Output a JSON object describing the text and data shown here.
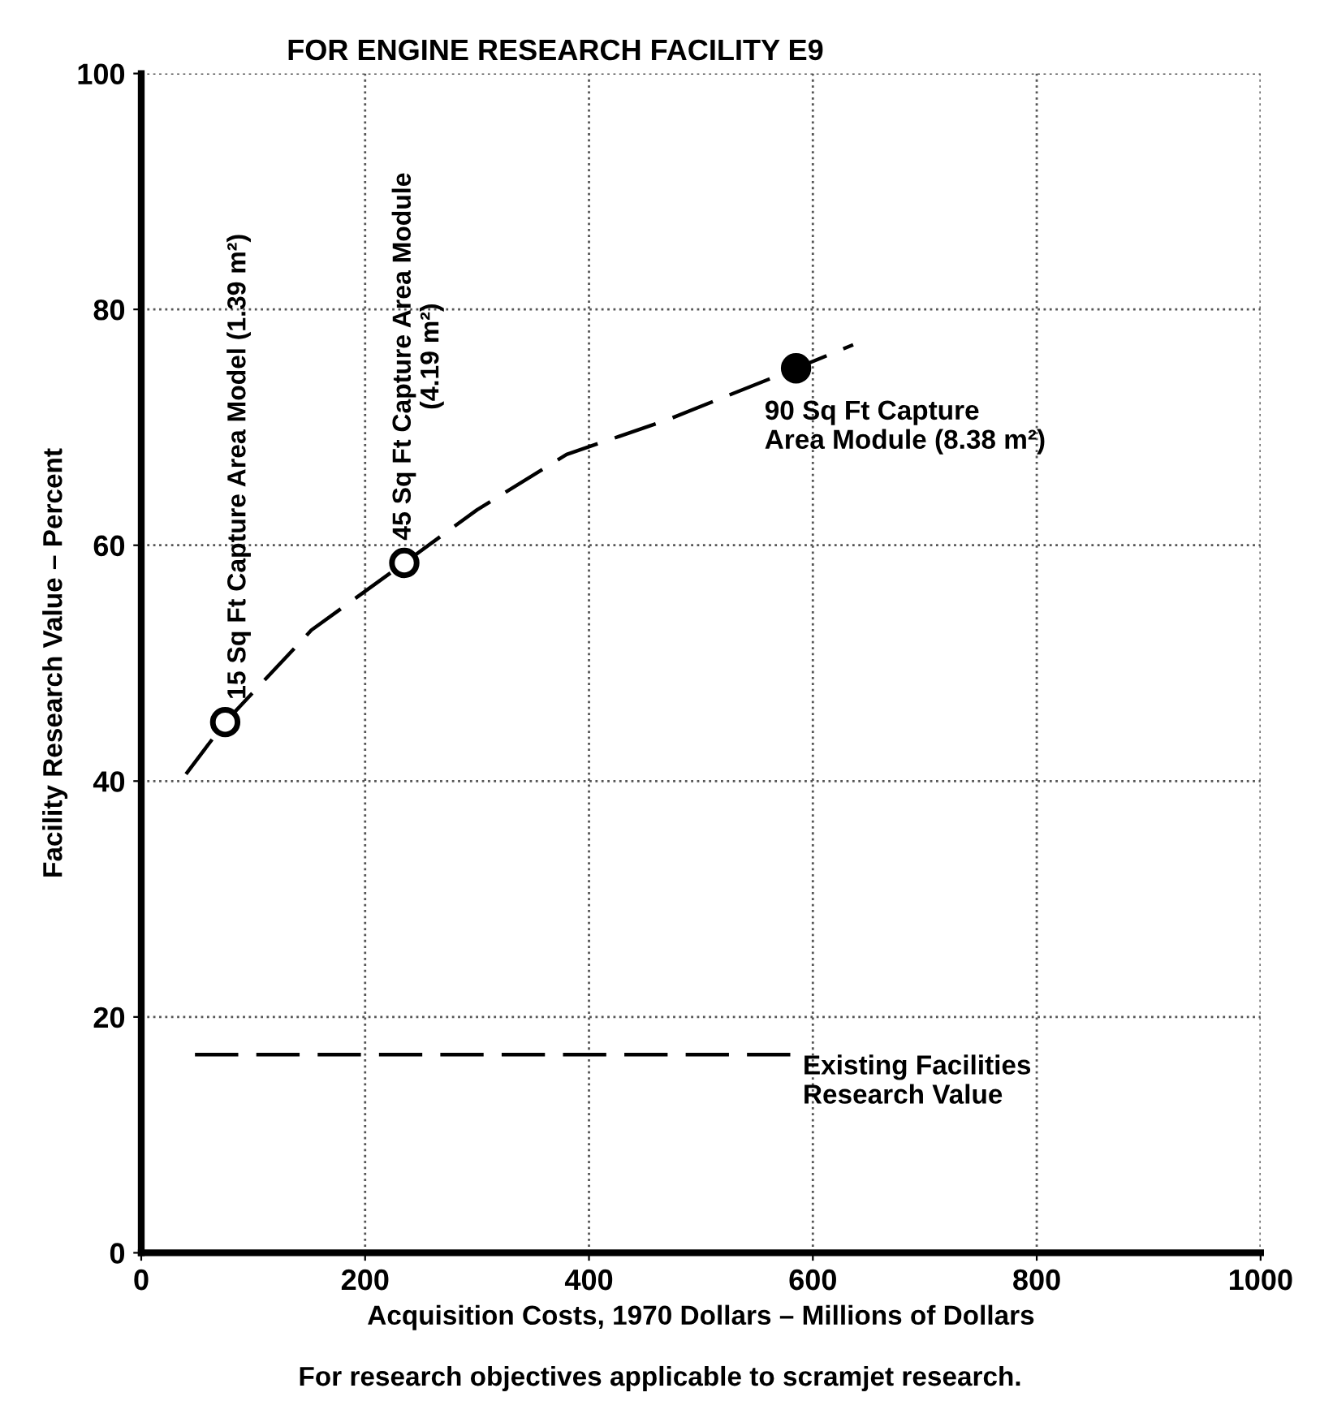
{
  "chart_data": {
    "type": "line",
    "title": "FOR ENGINE RESEARCH FACILITY E9",
    "xlabel": "Acquisition Costs, 1970 Dollars – Millions of Dollars",
    "ylabel": "Facility Research Value – Percent",
    "series": [
      {
        "color": "#000000",
        "line_style": "dashed",
        "x": [
          40,
          75,
          152,
          235,
          300,
          380,
          469,
          585,
          636
        ],
        "values": [
          40.6,
          45,
          52.8,
          58.5,
          63,
          67.7,
          70.6,
          75,
          77
        ]
      },
      {
        "type": "scatter",
        "marker": "circle",
        "x": [
          75,
          235,
          585
        ],
        "values": [
          45,
          58.5,
          75
        ],
        "colors": [
          "#ffffff",
          "#ffffff",
          "#000000"
        ]
      },
      {
        "name": "Existing Facilities\nResearch Value",
        "color": "#000000",
        "line_style": "dashed",
        "x": [
          48,
          587
        ],
        "values": [
          16.8,
          16.8
        ]
      }
    ],
    "annotations": [
      {
        "text": "15 Sq Ft Capture Area Model (1.39 m²)",
        "x": 75,
        "y": 45
      },
      {
        "text": "45 Sq Ft Capture Area Module\n(4.19 m²)",
        "x": 235,
        "y": 58.5
      },
      {
        "text": "90 Sq Ft Capture\nArea Module (8.38 m²)",
        "x": 585,
        "y": 75
      },
      "For research objectives applicable to scramjet research."
    ],
    "xlim": [
      0,
      1000
    ],
    "xticks": [
      0,
      200,
      400,
      600,
      800,
      1000
    ],
    "ylim": [
      0,
      100
    ],
    "yticks": [
      0,
      20,
      40,
      60,
      80,
      100
    ],
    "grid": true
  }
}
